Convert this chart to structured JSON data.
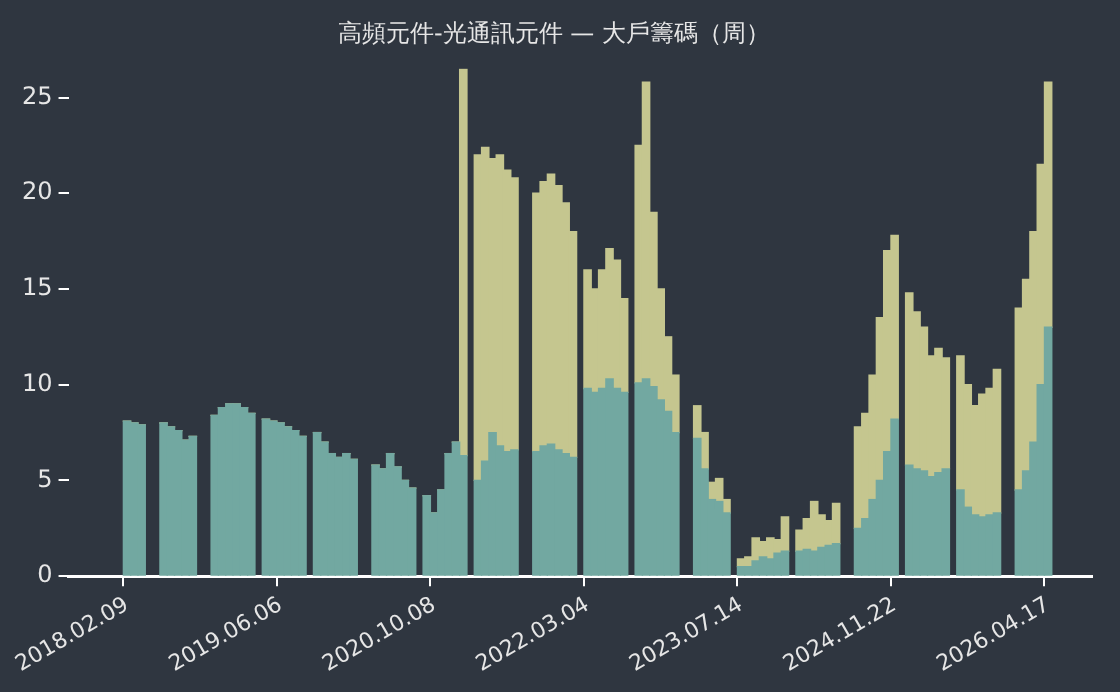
{
  "chart_data": {
    "type": "bar",
    "title": "高頻元件-光通訊元件 — 大戶籌碼（周）",
    "stacked": true,
    "categories": [
      null,
      null,
      null,
      null,
      null,
      null,
      null,
      null,
      "2018.02.09",
      null,
      null,
      null,
      null,
      null,
      null,
      null,
      null,
      null,
      null,
      null,
      null,
      null,
      null,
      null,
      null,
      null,
      null,
      null,
      null,
      "2019.06.06",
      null,
      null,
      null,
      null,
      null,
      null,
      null,
      null,
      null,
      null,
      null,
      null,
      null,
      null,
      null,
      null,
      null,
      null,
      null,
      null,
      "2020.10.08",
      null,
      null,
      null,
      null,
      null,
      null,
      null,
      null,
      null,
      null,
      null,
      null,
      null,
      null,
      null,
      null,
      null,
      null,
      null,
      null,
      "2022.03.04",
      null,
      null,
      null,
      null,
      null,
      null,
      null,
      null,
      null,
      null,
      null,
      null,
      null,
      null,
      null,
      null,
      null,
      null,
      null,
      null,
      "2023.07.14",
      null,
      null,
      null,
      null,
      null,
      null,
      null,
      null,
      null,
      null,
      null,
      null,
      null,
      null,
      null,
      null,
      null,
      null,
      null,
      null,
      "2024.11.22",
      null,
      null,
      null,
      null,
      null,
      null,
      null,
      null,
      null,
      null,
      null,
      null,
      null,
      null,
      null,
      null,
      null,
      null,
      null,
      null,
      "2026.04.17",
      null,
      null,
      null,
      null,
      null,
      null
    ],
    "series": [
      {
        "color": "#72a8a1",
        "values": [
          null,
          null,
          null,
          null,
          null,
          null,
          null,
          null,
          8.1,
          8.0,
          7.9,
          null,
          null,
          8.0,
          7.8,
          7.6,
          7.1,
          7.3,
          null,
          null,
          8.4,
          8.8,
          9.0,
          9.0,
          8.8,
          8.5,
          null,
          8.2,
          8.1,
          8.0,
          7.8,
          7.6,
          7.3,
          null,
          7.5,
          7.0,
          6.4,
          6.2,
          6.4,
          6.1,
          null,
          null,
          5.8,
          5.6,
          6.4,
          5.7,
          5.0,
          4.6,
          null,
          4.2,
          3.3,
          4.5,
          6.4,
          7.0,
          6.3,
          null,
          5.0,
          6.0,
          7.5,
          6.8,
          6.5,
          6.6,
          null,
          null,
          6.5,
          6.8,
          6.9,
          6.6,
          6.4,
          6.2,
          null,
          9.8,
          9.6,
          9.8,
          10.3,
          9.8,
          9.6,
          null,
          10.1,
          10.3,
          9.9,
          9.2,
          8.6,
          7.5,
          null,
          null,
          7.2,
          5.6,
          4.0,
          3.9,
          3.3,
          null,
          0.5,
          0.5,
          0.8,
          1.0,
          0.9,
          1.2,
          1.3,
          null,
          1.3,
          1.4,
          1.3,
          1.5,
          1.6,
          1.7,
          null,
          null,
          2.5,
          3.0,
          4.0,
          5.0,
          6.5,
          8.2,
          null,
          5.8,
          5.6,
          5.5,
          5.2,
          5.4,
          5.6,
          null,
          4.5,
          3.6,
          3.2,
          3.1,
          3.2,
          3.3,
          null,
          null,
          4.5,
          5.5,
          7.0,
          10.0,
          13.0,
          null,
          null,
          null,
          null,
          null,
          null
        ]
      },
      {
        "color": "#c5c68f",
        "values": [
          null,
          null,
          null,
          null,
          null,
          null,
          null,
          null,
          0,
          0,
          0,
          null,
          null,
          0,
          0,
          0,
          0,
          0,
          null,
          null,
          0,
          0,
          0,
          0,
          0,
          0,
          null,
          0,
          0,
          0,
          0,
          0,
          0,
          null,
          0,
          0,
          0,
          0,
          0,
          0,
          null,
          null,
          0,
          0,
          0,
          0,
          0,
          0,
          null,
          0,
          0,
          0,
          0,
          0,
          20.2,
          null,
          17.0,
          16.4,
          14.3,
          15.2,
          14.7,
          14.2,
          null,
          null,
          13.5,
          13.8,
          14.1,
          13.8,
          13.1,
          11.8,
          null,
          6.2,
          5.4,
          6.2,
          6.8,
          6.7,
          4.9,
          null,
          12.4,
          15.5,
          9.1,
          5.8,
          3.9,
          3.0,
          null,
          null,
          1.7,
          1.9,
          0.9,
          1.2,
          0.7,
          null,
          0.4,
          0.5,
          1.2,
          0.8,
          1.1,
          0.7,
          1.8,
          null,
          1.1,
          1.6,
          2.6,
          1.7,
          1.3,
          2.1,
          null,
          null,
          5.3,
          5.5,
          6.5,
          8.5,
          10.5,
          9.6,
          null,
          9.0,
          8.2,
          7.5,
          6.3,
          6.5,
          5.8,
          null,
          7.0,
          6.4,
          5.7,
          6.4,
          6.6,
          7.5,
          null,
          null,
          9.5,
          10.0,
          11.0,
          11.5,
          12.8,
          null,
          null,
          null,
          null,
          null,
          null
        ]
      }
    ],
    "ylim": [
      0,
      26.5
    ],
    "yticks": [
      0,
      5,
      10,
      15,
      20,
      25
    ]
  }
}
